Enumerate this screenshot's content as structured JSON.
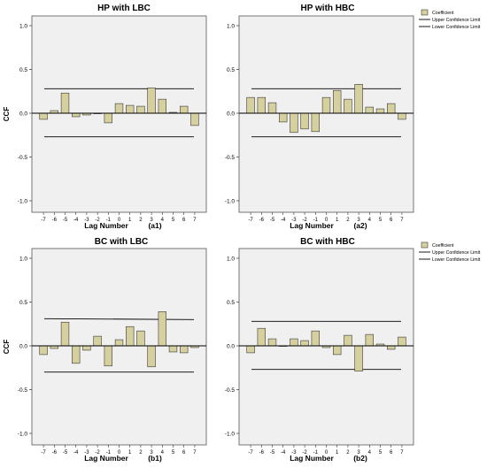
{
  "colors": {
    "bar_fill": "#d6cf9e",
    "bar_stroke": "#3a3a3a",
    "plot_bg": "#f0f0f0",
    "line": "#000000"
  },
  "legend": {
    "items": [
      {
        "label": "Coefficient",
        "kind": "box"
      },
      {
        "label": "Upper Confidence Limit",
        "kind": "line"
      },
      {
        "label": "Lower Confidence Limit",
        "kind": "line"
      }
    ]
  },
  "chart_data": [
    {
      "type": "bar",
      "title": "HP with LBC",
      "xlabel": "Lag Number",
      "panel_label": "(a1)",
      "ylabel": "CCF",
      "ylim": [
        -1.0,
        1.0
      ],
      "yticks": [
        -1.0,
        -0.5,
        0.0,
        0.5,
        1.0
      ],
      "ytick_labels": [
        "-1.0",
        "-0.5",
        "0.0",
        "0.5",
        "1.0"
      ],
      "categories": [
        "-7",
        "-6",
        "-5",
        "-4",
        "-3",
        "-2",
        "-1",
        "0",
        "1",
        "2",
        "3",
        "4",
        "5",
        "6",
        "7"
      ],
      "values": [
        -0.07,
        0.03,
        0.23,
        -0.04,
        -0.02,
        0.0,
        -0.11,
        0.11,
        0.09,
        0.08,
        0.29,
        0.16,
        0.01,
        0.08,
        -0.14
      ],
      "upper_limit": [
        0.28,
        0.28
      ],
      "lower_limit": [
        -0.27,
        -0.27
      ],
      "show_legend": false
    },
    {
      "type": "bar",
      "title": "HP with HBC",
      "xlabel": "Lag Number",
      "panel_label": "(a2)",
      "ylabel": "",
      "ylim": [
        -1.0,
        1.0
      ],
      "yticks": [
        -1.0,
        -0.5,
        0.0,
        0.5,
        1.0
      ],
      "ytick_labels": [
        "-1.0",
        "-0.5",
        "0.0",
        "0.5",
        "1.0"
      ],
      "categories": [
        "-7",
        "-6",
        "-5",
        "-4",
        "-3",
        "-2",
        "-1",
        "0",
        "1",
        "2",
        "3",
        "4",
        "5",
        "6",
        "7"
      ],
      "values": [
        0.18,
        0.18,
        0.12,
        -0.1,
        -0.22,
        -0.18,
        -0.21,
        0.18,
        0.26,
        0.16,
        0.33,
        0.07,
        0.05,
        0.11,
        -0.07
      ],
      "upper_limit": [
        0.28,
        0.28
      ],
      "lower_limit": [
        -0.27,
        -0.27
      ],
      "show_legend": true
    },
    {
      "type": "bar",
      "title": "BC with LBC",
      "xlabel": "Lag Number",
      "panel_label": "(b1)",
      "ylabel": "CCF",
      "ylim": [
        -1.0,
        1.0
      ],
      "yticks": [
        -1.0,
        -0.5,
        0.0,
        0.5,
        1.0
      ],
      "ytick_labels": [
        "-1.0",
        "-0.5",
        "0.0",
        "0.5",
        "1.0"
      ],
      "categories": [
        "-7",
        "-6",
        "-5",
        "-4",
        "-3",
        "-2",
        "-1",
        "0",
        "1",
        "2",
        "3",
        "4",
        "5",
        "6",
        "7"
      ],
      "values": [
        -0.1,
        -0.03,
        0.27,
        -0.2,
        -0.05,
        0.11,
        -0.23,
        0.07,
        0.22,
        0.17,
        -0.24,
        0.39,
        -0.07,
        -0.08,
        -0.02
      ],
      "upper_limit": [
        0.31,
        0.3
      ],
      "lower_limit": [
        -0.3,
        -0.3
      ],
      "show_legend": false
    },
    {
      "type": "bar",
      "title": "BC with HBC",
      "xlabel": "Lag Number",
      "panel_label": "(b2)",
      "ylabel": "",
      "ylim": [
        -1.0,
        1.0
      ],
      "yticks": [
        -1.0,
        -0.5,
        0.0,
        0.5,
        1.0
      ],
      "ytick_labels": [
        "-1.0",
        "-0.5",
        "0.0",
        "0.5",
        "1.0"
      ],
      "categories": [
        "-7",
        "-6",
        "-5",
        "-4",
        "-3",
        "-2",
        "-1",
        "0",
        "1",
        "2",
        "3",
        "4",
        "5",
        "6",
        "7"
      ],
      "values": [
        -0.08,
        0.2,
        0.08,
        0.0,
        0.08,
        0.06,
        0.17,
        -0.02,
        -0.1,
        0.12,
        -0.29,
        0.13,
        0.02,
        -0.04,
        0.1
      ],
      "upper_limit": [
        0.28,
        0.28
      ],
      "lower_limit": [
        -0.27,
        -0.27
      ],
      "show_legend": true
    }
  ]
}
